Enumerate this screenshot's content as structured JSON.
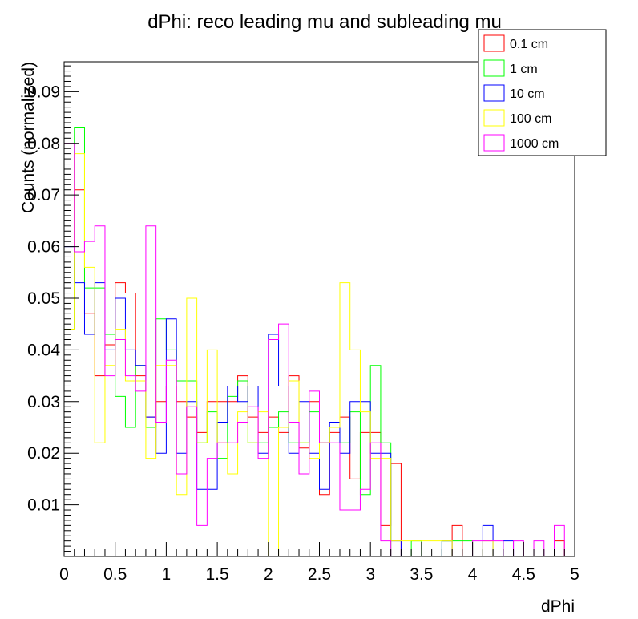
{
  "chart_data": {
    "type": "step-histogram",
    "title": "dPhi: reco leading mu and subleading mu",
    "xlabel": "dPhi",
    "ylabel": "Counts (normalized)",
    "xlim": [
      0,
      5
    ],
    "ylim": [
      0,
      0.0958
    ],
    "bin_width": 0.1,
    "x_ticks": [
      {
        "value": 0,
        "label": "0"
      },
      {
        "value": 0.5,
        "label": "0.5"
      },
      {
        "value": 1,
        "label": "1"
      },
      {
        "value": 1.5,
        "label": "1.5"
      },
      {
        "value": 2,
        "label": "2"
      },
      {
        "value": 2.5,
        "label": "2.5"
      },
      {
        "value": 3,
        "label": "3"
      },
      {
        "value": 3.5,
        "label": "3.5"
      },
      {
        "value": 4,
        "label": "4"
      },
      {
        "value": 4.5,
        "label": "4.5"
      },
      {
        "value": 5,
        "label": "5"
      }
    ],
    "y_ticks": [
      {
        "value": 0.01,
        "label": "0.01"
      },
      {
        "value": 0.02,
        "label": "0.02"
      },
      {
        "value": 0.03,
        "label": "0.03"
      },
      {
        "value": 0.04,
        "label": "0.04"
      },
      {
        "value": 0.05,
        "label": "0.05"
      },
      {
        "value": 0.06,
        "label": "0.06"
      },
      {
        "value": 0.07,
        "label": "0.07"
      },
      {
        "value": 0.08,
        "label": "0.08"
      },
      {
        "value": 0.09,
        "label": "0.09"
      }
    ],
    "legend_position": "top-right",
    "series": [
      {
        "name": "0.1 cm",
        "color": "#ff0000",
        "values": [
          0.044,
          0.071,
          0.047,
          0.035,
          0.041,
          0.053,
          0.051,
          0.035,
          0.027,
          0.03,
          0.033,
          0.03,
          0.027,
          0.024,
          0.03,
          0.03,
          0.03,
          0.035,
          0.027,
          0.024,
          0.027,
          0.024,
          0.035,
          0.021,
          0.03,
          0.012,
          0.024,
          0.027,
          0.015,
          0.024,
          0.024,
          0.006,
          0.018,
          0,
          0,
          0,
          0,
          0,
          0.006,
          0,
          0,
          0,
          0,
          0,
          0,
          0,
          0,
          0,
          0.003,
          0
        ]
      },
      {
        "name": "1 cm",
        "color": "#00ff00",
        "values": [
          0.044,
          0.083,
          0.052,
          0.052,
          0.043,
          0.031,
          0.025,
          0.037,
          0.025,
          0.046,
          0.04,
          0.034,
          0.034,
          0.022,
          0.028,
          0.019,
          0.031,
          0.034,
          0.022,
          0.022,
          0.025,
          0.028,
          0.022,
          0.022,
          0.028,
          0.022,
          0.025,
          0.022,
          0.028,
          0.012,
          0.037,
          0.022,
          0,
          0,
          0.003,
          0,
          0,
          0.003,
          0.003,
          0.003,
          0,
          0,
          0,
          0,
          0,
          0,
          0,
          0,
          0,
          0
        ]
      },
      {
        "name": "10 cm",
        "color": "#0000ff",
        "values": [
          0.06,
          0.053,
          0.043,
          0.053,
          0.04,
          0.05,
          0.04,
          0.037,
          0.027,
          0.02,
          0.046,
          0.02,
          0.03,
          0.013,
          0.013,
          0.026,
          0.033,
          0.03,
          0.033,
          0.02,
          0.043,
          0.033,
          0.02,
          0.03,
          0.02,
          0.013,
          0.026,
          0.02,
          0.03,
          0.03,
          0.02,
          0.02,
          0.003,
          0,
          0,
          0,
          0,
          0.003,
          0,
          0,
          0,
          0.006,
          0,
          0.003,
          0,
          0,
          0,
          0,
          0,
          0
        ]
      },
      {
        "name": "100 cm",
        "color": "#ffff00",
        "values": [
          0.044,
          0.078,
          0.056,
          0.022,
          0.037,
          0.044,
          0.034,
          0.034,
          0.019,
          0.037,
          0.037,
          0.012,
          0.05,
          0.022,
          0.04,
          0.022,
          0.016,
          0.028,
          0.022,
          0.028,
          0,
          0.025,
          0.034,
          0.022,
          0.019,
          0.022,
          0.025,
          0.053,
          0.04,
          0.028,
          0.019,
          0.019,
          0.003,
          0.003,
          0.003,
          0.003,
          0.003,
          0.003,
          0,
          0,
          0,
          0.003,
          0,
          0,
          0,
          0,
          0,
          0,
          0,
          0
        ]
      },
      {
        "name": "1000 cm",
        "color": "#ff00ff",
        "values": [
          0.08,
          0.059,
          0.061,
          0.064,
          0.035,
          0.042,
          0.035,
          0.032,
          0.064,
          0.026,
          0.038,
          0.016,
          0.029,
          0.006,
          0.019,
          0.022,
          0.022,
          0.026,
          0.029,
          0.019,
          0.042,
          0.045,
          0.026,
          0.016,
          0.032,
          0.022,
          0.022,
          0.009,
          0.009,
          0.013,
          0.022,
          0.003,
          0,
          0,
          0,
          0,
          0,
          0,
          0,
          0,
          0.003,
          0.003,
          0.003,
          0,
          0.003,
          0,
          0.003,
          0,
          0.006,
          0
        ]
      }
    ]
  }
}
